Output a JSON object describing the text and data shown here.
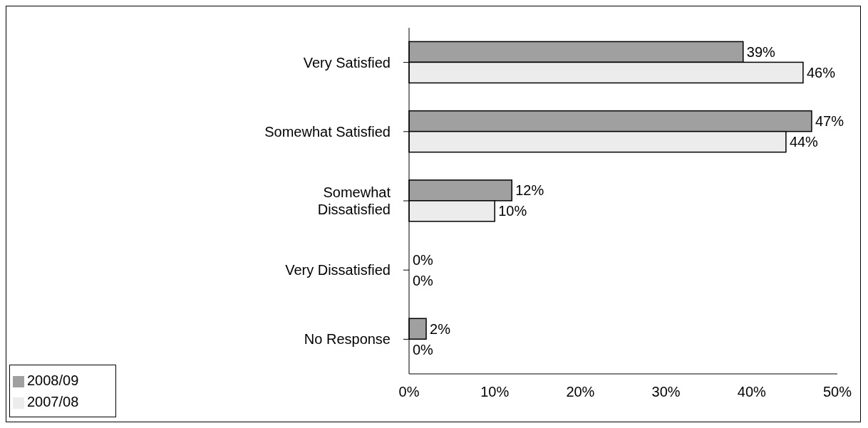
{
  "chart_data": {
    "type": "bar",
    "orientation": "horizontal",
    "categories": [
      "Very Satisfied",
      "Somewhat Satisfied",
      "Somewhat Dissatisfied",
      "Very Dissatisfied",
      "No Response"
    ],
    "series": [
      {
        "name": "2008/09",
        "color": "#a0a0a0",
        "values": [
          39,
          47,
          12,
          0,
          2
        ],
        "value_labels": [
          "39%",
          "47%",
          "12%",
          "0%",
          "2%"
        ]
      },
      {
        "name": "2007/08",
        "color": "#ececec",
        "values": [
          46,
          44,
          10,
          0,
          0
        ],
        "value_labels": [
          "46%",
          "44%",
          "10%",
          "0%",
          "0%"
        ]
      }
    ],
    "xlim": [
      0,
      50
    ],
    "xticks": [
      {
        "value": 0,
        "label": "0%"
      },
      {
        "value": 10,
        "label": "10%"
      },
      {
        "value": 20,
        "label": "20%"
      },
      {
        "value": 30,
        "label": "30%"
      },
      {
        "value": 40,
        "label": "40%"
      },
      {
        "value": 50,
        "label": "50%"
      }
    ],
    "grid": false,
    "legend": "bottom left"
  }
}
